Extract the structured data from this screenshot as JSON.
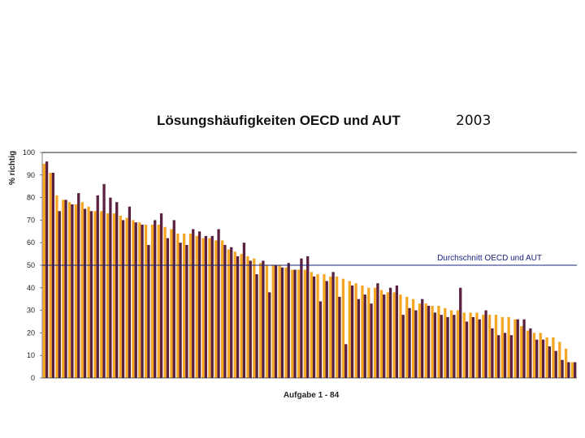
{
  "chart_data": {
    "type": "bar",
    "title_parts": {
      "prefix": "Lösungshäufigkeiten ",
      "highlight": "OECD",
      "suffix": " und AUT",
      "year": "2003"
    },
    "xlabel": "Aufgabe 1 - 84",
    "ylabel": "% richtig",
    "ylim": [
      0,
      100
    ],
    "yticks": [
      "0",
      "10",
      "20",
      "30",
      "40",
      "50",
      "60",
      "70",
      "80",
      "90",
      "100"
    ],
    "grid": false,
    "reference_line": {
      "value": 50,
      "label": "Durchschnitt OECD und AUT",
      "color": "#1a237e"
    },
    "colors": {
      "OECD": "#f5a623",
      "AUT": "#5a2040",
      "title_highlight": "#e65c00"
    },
    "series": [
      {
        "values": [
          95,
          91,
          81,
          79,
          78,
          77,
          78,
          76,
          74,
          74,
          73,
          73,
          72,
          71,
          70,
          69,
          68,
          68,
          68,
          67,
          66,
          64,
          64,
          64,
          63,
          62,
          62,
          61,
          61,
          57,
          56,
          55,
          54,
          53,
          51,
          50,
          50,
          50,
          49,
          48,
          48,
          48,
          47,
          46,
          46,
          45,
          45,
          44,
          43,
          42,
          41,
          40,
          40,
          39,
          38,
          38,
          37,
          36,
          35,
          33,
          33,
          32,
          32,
          31,
          30,
          30,
          29,
          29,
          29,
          28,
          28,
          28,
          27,
          27,
          26,
          23,
          21,
          20,
          20,
          18,
          18,
          16,
          13,
          7
        ]
      },
      {
        "values": [
          96,
          91,
          74,
          79,
          77,
          82,
          75,
          74,
          81,
          86,
          80,
          78,
          70,
          76,
          69,
          68,
          59,
          70,
          73,
          62,
          70,
          60,
          59,
          66,
          65,
          63,
          63,
          66,
          59,
          58,
          54,
          60,
          52,
          46,
          52,
          38,
          50,
          49,
          51,
          48,
          53,
          54,
          45,
          34,
          43,
          47,
          36,
          15,
          41,
          35,
          37,
          33,
          42,
          37,
          40,
          41,
          28,
          31,
          30,
          35,
          32,
          29,
          28,
          27,
          28,
          40,
          25,
          27,
          26,
          30,
          22,
          19,
          20,
          19,
          26,
          26,
          22,
          17,
          17,
          14,
          12,
          8,
          7,
          7
        ]
      }
    ]
  }
}
